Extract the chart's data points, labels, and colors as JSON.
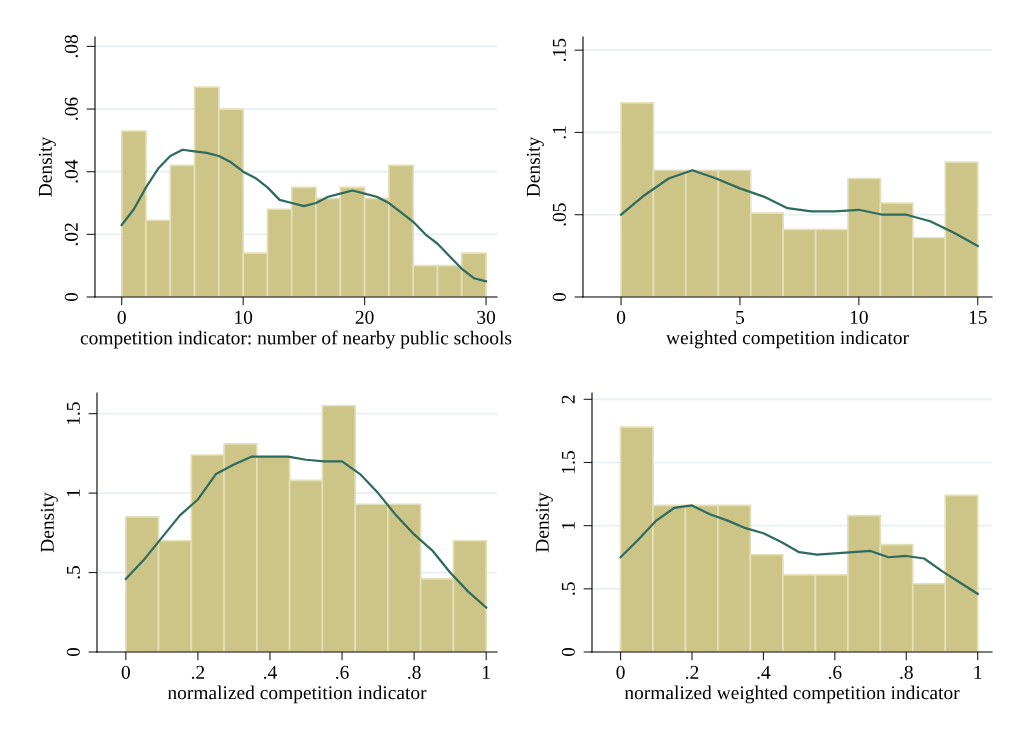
{
  "chart_data": [
    {
      "type": "histogram",
      "xlabel": "competition indicator: number of nearby public schools",
      "ylabel": "Density",
      "color": "#cdc587",
      "grid": "y",
      "bins": [
        0,
        2,
        4,
        6,
        8,
        10,
        12,
        14,
        16,
        18,
        20,
        22,
        24,
        26,
        28,
        30
      ],
      "values": [
        0.053,
        0.0245,
        0.042,
        0.067,
        0.06,
        0.014,
        0.028,
        0.035,
        0.0315,
        0.035,
        0.0315,
        0.042,
        0.01,
        0.01,
        0.014
      ],
      "series": [
        {
          "type": "line",
          "color": "#2e6b5e",
          "x": [
            0,
            1,
            2,
            3,
            4,
            5,
            6,
            7,
            8,
            9,
            10,
            11,
            12,
            13,
            14,
            15,
            16,
            17,
            18,
            19,
            20,
            21,
            22,
            23,
            24,
            25,
            26,
            27,
            28,
            29,
            30
          ],
          "values": [
            0.023,
            0.028,
            0.035,
            0.041,
            0.045,
            0.047,
            0.0465,
            0.046,
            0.045,
            0.043,
            0.04,
            0.038,
            0.035,
            0.031,
            0.03,
            0.029,
            0.03,
            0.032,
            0.033,
            0.034,
            0.033,
            0.032,
            0.03,
            0.027,
            0.024,
            0.02,
            0.017,
            0.013,
            0.009,
            0.006,
            0.005
          ]
        }
      ],
      "xlim": [
        -2.2,
        30.9
      ],
      "ylim": [
        0,
        0.083
      ],
      "xticks": [
        0,
        10,
        20,
        30
      ],
      "yticks": [
        0,
        {
          "value": 0.02,
          "label": ".02"
        },
        {
          "value": 0.04,
          "label": ".04"
        },
        {
          "value": 0.06,
          "label": ".06"
        },
        {
          "value": 0.08,
          "label": ".08"
        }
      ]
    },
    {
      "type": "histogram",
      "xlabel": "weighted competition indicator",
      "ylabel": "Density",
      "color": "#cdc587",
      "grid": "y",
      "bins": [
        0,
        1.364,
        2.727,
        4.091,
        5.455,
        6.818,
        8.182,
        9.545,
        10.909,
        12.273,
        13.636,
        15
      ],
      "values": [
        0.118,
        0.077,
        0.077,
        0.077,
        0.051,
        0.041,
        0.041,
        0.072,
        0.057,
        0.036,
        0.082
      ],
      "series": [
        {
          "type": "line",
          "color": "#2e6b5e",
          "x": [
            0,
            1,
            2,
            3,
            4,
            5,
            6,
            7,
            8,
            9,
            10,
            11,
            12,
            13,
            14,
            15
          ],
          "values": [
            0.05,
            0.062,
            0.072,
            0.077,
            0.072,
            0.066,
            0.061,
            0.054,
            0.052,
            0.052,
            0.053,
            0.05,
            0.05,
            0.046,
            0.039,
            0.031
          ]
        }
      ],
      "xlim": [
        -1.6,
        15.6
      ],
      "ylim": [
        0,
        0.158
      ],
      "xticks": [
        0,
        5,
        10,
        15
      ],
      "yticks": [
        0,
        {
          "value": 0.05,
          "label": ".05"
        },
        {
          "value": 0.1,
          "label": ".1"
        },
        {
          "value": 0.15,
          "label": ".15"
        }
      ]
    },
    {
      "type": "histogram",
      "xlabel": "normalized competition indicator",
      "ylabel": "Density",
      "color": "#cdc587",
      "grid": "y",
      "bins": [
        0,
        0.0909,
        0.1818,
        0.2727,
        0.3636,
        0.4545,
        0.5455,
        0.6364,
        0.7273,
        0.8182,
        0.9091,
        1
      ],
      "values": [
        0.85,
        0.7,
        1.24,
        1.31,
        1.23,
        1.08,
        1.55,
        0.93,
        0.93,
        0.46,
        0.7
      ],
      "series": [
        {
          "type": "line",
          "color": "#2e6b5e",
          "x": [
            0,
            0.05,
            0.1,
            0.15,
            0.2,
            0.25,
            0.3,
            0.35,
            0.4,
            0.45,
            0.5,
            0.55,
            0.6,
            0.65,
            0.7,
            0.75,
            0.8,
            0.85,
            0.9,
            0.95,
            1
          ],
          "values": [
            0.46,
            0.58,
            0.72,
            0.86,
            0.96,
            1.12,
            1.18,
            1.23,
            1.23,
            1.23,
            1.21,
            1.2,
            1.2,
            1.12,
            1.0,
            0.86,
            0.74,
            0.64,
            0.5,
            0.38,
            0.28
          ]
        }
      ],
      "xlim": [
        -0.08,
        1.03
      ],
      "ylim": [
        0,
        1.63
      ],
      "xticks": [
        0,
        {
          "value": 0.2,
          "label": ".2"
        },
        {
          "value": 0.4,
          "label": ".4"
        },
        {
          "value": 0.6,
          "label": ".6"
        },
        {
          "value": 0.8,
          "label": ".8"
        },
        1
      ],
      "yticks": [
        0,
        {
          "value": 0.5,
          "label": ".5"
        },
        1,
        1.5
      ]
    },
    {
      "type": "histogram",
      "xlabel": "normalized weighted competition indicator",
      "ylabel": "Density",
      "color": "#cdc587",
      "grid": "y",
      "bins": [
        0,
        0.0909,
        0.1818,
        0.2727,
        0.3636,
        0.4545,
        0.5455,
        0.6364,
        0.7273,
        0.8182,
        0.9091,
        1
      ],
      "values": [
        1.78,
        1.16,
        1.16,
        1.16,
        0.77,
        0.61,
        0.61,
        1.08,
        0.85,
        0.54,
        1.24
      ],
      "series": [
        {
          "type": "line",
          "color": "#2e6b5e",
          "x": [
            0,
            0.05,
            0.1,
            0.15,
            0.2,
            0.25,
            0.3,
            0.35,
            0.4,
            0.45,
            0.5,
            0.55,
            0.6,
            0.65,
            0.7,
            0.75,
            0.8,
            0.85,
            0.9,
            0.95,
            1
          ],
          "values": [
            0.75,
            0.89,
            1.04,
            1.14,
            1.16,
            1.09,
            1.04,
            0.98,
            0.94,
            0.87,
            0.79,
            0.77,
            0.78,
            0.79,
            0.8,
            0.75,
            0.76,
            0.74,
            0.64,
            0.55,
            0.46
          ]
        }
      ],
      "xlim": [
        -0.08,
        1.04
      ],
      "ylim": [
        0,
        2.05
      ],
      "xticks": [
        0,
        {
          "value": 0.2,
          "label": ".2"
        },
        {
          "value": 0.4,
          "label": ".4"
        },
        {
          "value": 0.6,
          "label": ".6"
        },
        {
          "value": 0.8,
          "label": ".8"
        },
        1
      ],
      "yticks": [
        0,
        {
          "value": 0.5,
          "label": ".5"
        },
        1,
        1.5,
        2
      ]
    }
  ]
}
